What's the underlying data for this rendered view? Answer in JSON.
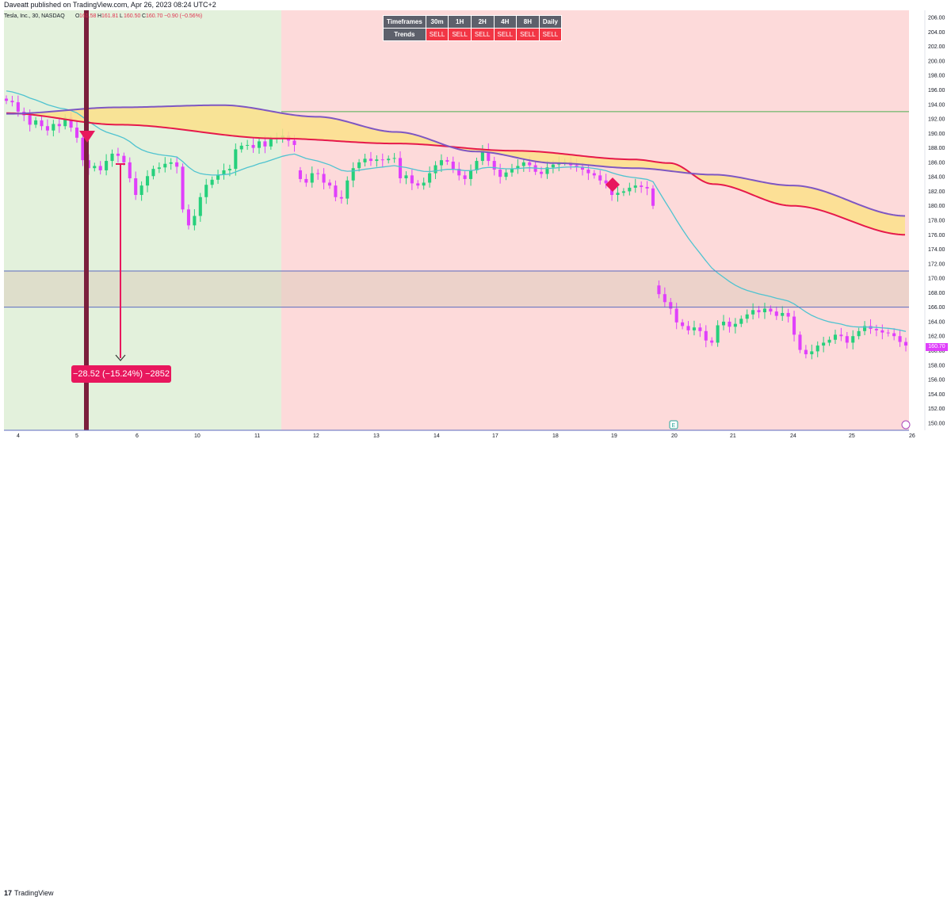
{
  "header": {
    "published": "Daveatt published on TradingView.com, Apr 26, 2023 08:24 UTC+2",
    "symbol": "Tesla, Inc., 30, NASDAQ",
    "ohlc": {
      "o_label": "O",
      "o": "161.58",
      "h_label": "H",
      "h": "161.81",
      "l_label": "L",
      "l": "160.50",
      "c_label": "C",
      "c": "160.70",
      "change": "−0.90 (−0.56%)"
    }
  },
  "trend_table": {
    "header_label": "Timeframes",
    "row_label": "Trends",
    "timeframes": [
      "30m",
      "1H",
      "2H",
      "4H",
      "8H",
      "Daily"
    ],
    "trends": [
      "SELL",
      "SELL",
      "SELL",
      "SELL",
      "SELL",
      "SELL"
    ]
  },
  "colors": {
    "bull": "#26d07c",
    "bear": "#e040fb",
    "zone_green": "#e3f1dc",
    "zone_red": "#fddada",
    "cloud": "#fbe18a",
    "ema_red": "#e6194b",
    "ema_purple": "#7e57c2",
    "ema_teal": "#4fc3d0",
    "sell": "#f23645",
    "measure": "#e8175d",
    "line_green": "#4caf50",
    "line_blue": "#5c6bc0"
  },
  "price_axis": {
    "labels": [
      "206.00",
      "204.00",
      "202.00",
      "200.00",
      "198.00",
      "196.00",
      "194.00",
      "192.00",
      "190.00",
      "188.00",
      "186.00",
      "184.00",
      "182.00",
      "180.00",
      "178.00",
      "176.00",
      "174.00",
      "172.00",
      "170.00",
      "168.00",
      "166.00",
      "164.00",
      "162.00",
      "160.00",
      "158.00",
      "156.00",
      "154.00",
      "152.00",
      "150.00"
    ],
    "current_price": "160.70"
  },
  "time_axis": {
    "labels": [
      "4",
      "5",
      "6",
      "10",
      "11",
      "12",
      "13",
      "14",
      "17",
      "18",
      "19",
      "20",
      "21",
      "24",
      "25",
      "26"
    ]
  },
  "measure": {
    "label": "−28.52 (−15.24%) −2852"
  },
  "markers": {
    "earnings": "E"
  },
  "footer": {
    "logo_mark": "17",
    "logo_text": "TradingView"
  },
  "chart_data": {
    "type": "candlestick",
    "symbol": "TSLA",
    "interval": "30",
    "ylim": [
      149,
      207
    ],
    "sessions": [
      "4",
      "5",
      "6",
      "10",
      "11",
      "12",
      "13",
      "14",
      "17",
      "18",
      "19",
      "20",
      "21",
      "24",
      "25",
      "26"
    ],
    "levels": [
      193.0,
      171.0,
      166.0
    ],
    "close_path": [
      194.5,
      194.3,
      193.0,
      192.5,
      191.2,
      191.8,
      191.0,
      190.4,
      191.3,
      191.0,
      192.2,
      190.8,
      189.4,
      186.3,
      185.2,
      185.5,
      184.9,
      186.2,
      187.2,
      186.9,
      186.0,
      183.8,
      181.5,
      182.8,
      184.1,
      185.1,
      185.3,
      185.8,
      186.0,
      185.4,
      179.5,
      177.3,
      178.6,
      181.2,
      182.9,
      183.6,
      184.3,
      184.9,
      185.1,
      187.8,
      188.3,
      188.4,
      188.0,
      188.9,
      188.2,
      189.2,
      189.4,
      189.7,
      189.0,
      188.4,
      183.7,
      183.2,
      184.5,
      184.4,
      183.2,
      182.8,
      181.2,
      181.0,
      183.5,
      185.2,
      186.0,
      186.5,
      186.2,
      186.4,
      186.3,
      186.5,
      186.6,
      183.8,
      184.2,
      183.1,
      182.8,
      183.2,
      184.5,
      185.6,
      186.3,
      186.1,
      185.1,
      184.2,
      183.7,
      184.9,
      186.2,
      187.7,
      186.2,
      185.0,
      184.0,
      184.6,
      185.1,
      185.5,
      186.0,
      185.6,
      184.7,
      184.4,
      185.3,
      185.7,
      186.0,
      186.1,
      185.6,
      185.4,
      185.0,
      184.5,
      184.2,
      183.5,
      183.1,
      181.5,
      181.8,
      182.0,
      182.5,
      182.8,
      182.6,
      182.4,
      180.0,
      167.8,
      166.7,
      165.8,
      163.9,
      163.4,
      162.8,
      163.2,
      162.7,
      161.4,
      161.1,
      163.5,
      164.0,
      163.3,
      163.7,
      164.4,
      165.0,
      165.6,
      165.3,
      165.8,
      165.4,
      164.8,
      165.2,
      164.7,
      162.2,
      160.1,
      159.5,
      159.9,
      160.7,
      161.1,
      161.5,
      162.2,
      162.0,
      161.1,
      162.0,
      162.7,
      163.4,
      163.0,
      162.8,
      162.5,
      162.4,
      162.0,
      161.2,
      160.7
    ]
  }
}
